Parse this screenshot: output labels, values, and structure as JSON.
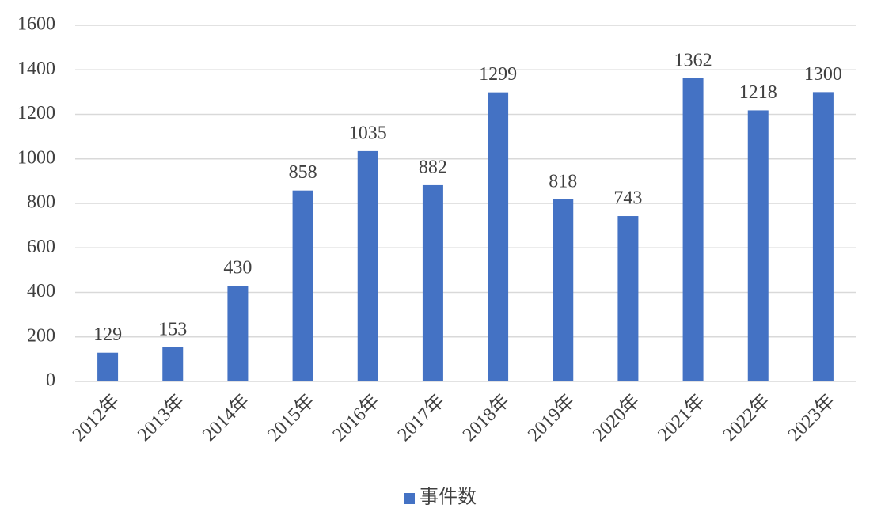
{
  "chart_data": {
    "type": "bar",
    "categories": [
      "2012年",
      "2013年",
      "2014年",
      "2015年",
      "2016年",
      "2017年",
      "2018年",
      "2019年",
      "2020年",
      "2021年",
      "2022年",
      "2023年"
    ],
    "series": [
      {
        "name": "事件数",
        "color": "#4472c4",
        "values": [
          129,
          153,
          430,
          858,
          1035,
          882,
          1299,
          818,
          743,
          1362,
          1218,
          1300
        ]
      }
    ],
    "ylim": [
      0,
      1600
    ],
    "yticks": [
      0,
      200,
      400,
      600,
      800,
      1000,
      1200,
      1400,
      1600
    ],
    "grid": true,
    "legend": "bottom"
  }
}
